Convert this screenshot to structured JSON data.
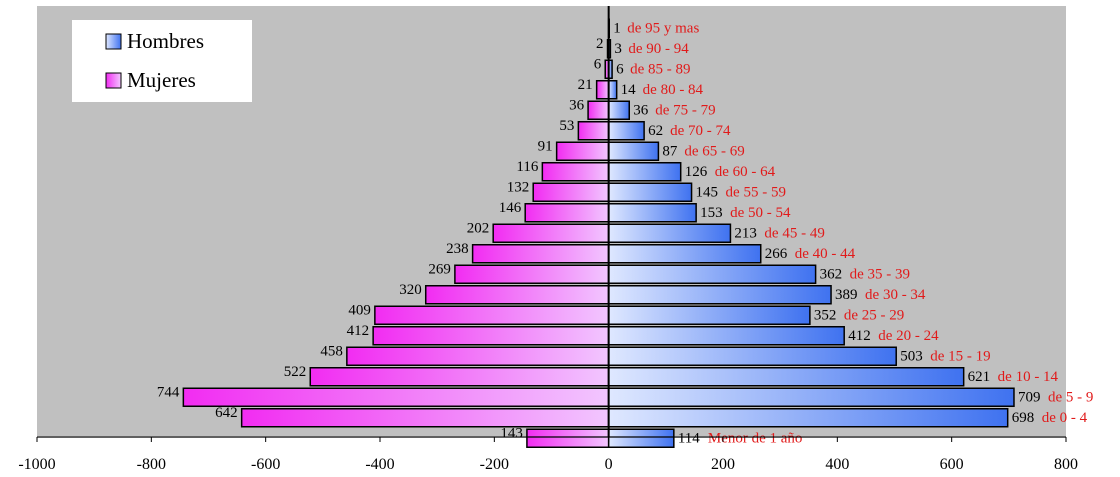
{
  "chart_data": {
    "type": "bar",
    "orientation": "horizontal",
    "title": "",
    "xlim": [
      -1000,
      800
    ],
    "xticks": [
      -1000,
      -800,
      -600,
      -400,
      -200,
      0,
      200,
      400,
      600,
      800
    ],
    "xtick_labels": [
      "-1000",
      "-800",
      "-600",
      "-400",
      "-200",
      "0",
      "200",
      "400",
      "600",
      "800"
    ],
    "categories": [
      "Menor de 1 año",
      "de 0 - 4",
      "de 5 - 9",
      "de 10 - 14",
      "de 15 - 19",
      "de 20 - 24",
      "de 25 - 29",
      "de 30 - 34",
      "de 35 - 39",
      "de 40 - 44",
      "de 45 - 49",
      "de 50 - 54",
      "de 55 - 59",
      "de 60 - 64",
      "de 65 - 69",
      "de 70 - 74",
      "de 75 - 79",
      "de 80 - 84",
      "de 85 - 89",
      "de 90 - 94",
      "de 95 y mas"
    ],
    "series": [
      {
        "name": "Hombres",
        "values": [
          114,
          698,
          709,
          621,
          503,
          412,
          352,
          389,
          362,
          266,
          213,
          153,
          145,
          126,
          87,
          62,
          36,
          14,
          6,
          3,
          1
        ],
        "labels": [
          "114",
          "698",
          "709",
          "621",
          "503",
          "412",
          "352",
          "389",
          "362",
          "266",
          "213",
          "153",
          "145",
          "126",
          "87",
          "62",
          "36",
          "14",
          "6",
          "3",
          "1"
        ]
      },
      {
        "name": "Mujeres",
        "values": [
          143,
          642,
          744,
          522,
          458,
          412,
          409,
          320,
          269,
          238,
          202,
          146,
          132,
          116,
          91,
          53,
          36,
          21,
          6,
          2,
          0
        ],
        "labels": [
          "143",
          "642",
          "744",
          "522",
          "458",
          "412",
          "409",
          "320",
          "269",
          "238",
          "202",
          "146",
          "132",
          "116",
          "91",
          "53",
          "36",
          "21",
          "6",
          "2",
          ""
        ]
      }
    ],
    "grid": false,
    "legend_position": "top-left",
    "colors": {
      "plot_background": "#c0c0c0",
      "hombres_fill_start": "#dfe8ff",
      "hombres_fill_end": "#3f72f0",
      "mujeres_fill_start": "#f2c6ff",
      "mujeres_fill_end": "#f22cf2",
      "age_label_color": "#e11a1a",
      "axis_color": "#000000"
    }
  }
}
